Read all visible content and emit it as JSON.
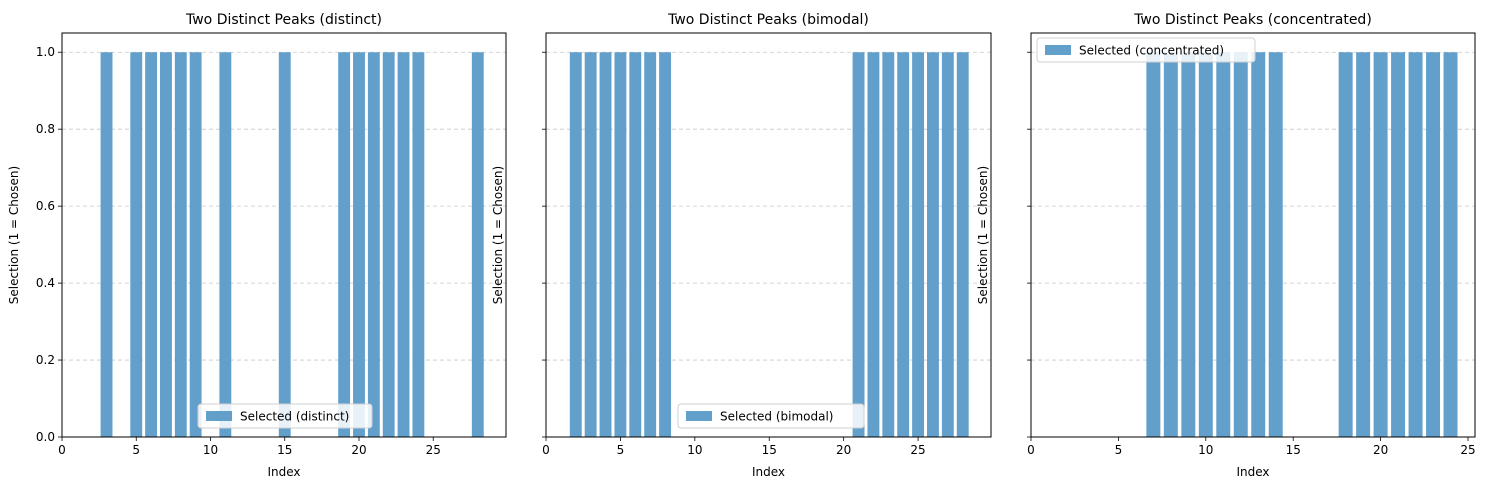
{
  "chart_data": [
    {
      "type": "bar",
      "title": "Two Distinct Peaks (distinct)",
      "xlabel": "Index",
      "ylabel": "Selection (1 = Chosen)",
      "x": [
        3,
        5,
        6,
        7,
        8,
        9,
        11,
        15,
        19,
        20,
        21,
        22,
        23,
        24,
        28
      ],
      "values": [
        1,
        1,
        1,
        1,
        1,
        1,
        1,
        1,
        1,
        1,
        1,
        1,
        1,
        1,
        1
      ],
      "series": [
        {
          "name": "Selected (distinct)"
        }
      ],
      "xlim": [
        0,
        29.9
      ],
      "ylim": [
        0,
        1.05
      ],
      "xticks": [
        0,
        5,
        10,
        15,
        20,
        25
      ],
      "yticks": [
        0.0,
        0.2,
        0.4,
        0.6,
        0.8,
        1.0
      ],
      "grid": "y-dashed",
      "legend": "lower-center",
      "color": "#62a0cb"
    },
    {
      "type": "bar",
      "title": "Two Distinct Peaks (bimodal)",
      "xlabel": "Index",
      "ylabel": "Selection (1 = Chosen)",
      "x": [
        2,
        3,
        4,
        5,
        6,
        7,
        8,
        21,
        22,
        23,
        24,
        25,
        26,
        27,
        28
      ],
      "values": [
        1,
        1,
        1,
        1,
        1,
        1,
        1,
        1,
        1,
        1,
        1,
        1,
        1,
        1,
        1
      ],
      "series": [
        {
          "name": "Selected (bimodal)"
        }
      ],
      "xlim": [
        0,
        29.9
      ],
      "ylim": [
        0,
        1.05
      ],
      "xticks": [
        0,
        5,
        10,
        15,
        20,
        25
      ],
      "yticks": [
        0.0,
        0.2,
        0.4,
        0.6,
        0.8,
        1.0
      ],
      "grid": "y-dashed",
      "legend": "lower-center",
      "color": "#62a0cb"
    },
    {
      "type": "bar",
      "title": "Two Distinct Peaks (concentrated)",
      "xlabel": "Index",
      "ylabel": "Selection (1 = Chosen)",
      "x": [
        7,
        8,
        9,
        10,
        11,
        12,
        13,
        14,
        18,
        19,
        20,
        21,
        22,
        23,
        24
      ],
      "values": [
        1,
        1,
        1,
        1,
        1,
        1,
        1,
        1,
        1,
        1,
        1,
        1,
        1,
        1,
        1
      ],
      "series": [
        {
          "name": "Selected (concentrated)"
        }
      ],
      "xlim": [
        0,
        25.4
      ],
      "ylim": [
        0,
        1.05
      ],
      "xticks": [
        0,
        5,
        10,
        15,
        20,
        25
      ],
      "yticks": [
        0.0,
        0.2,
        0.4,
        0.6,
        0.8,
        1.0
      ],
      "grid": "y-dashed",
      "legend": "upper-left",
      "color": "#62a0cb"
    }
  ]
}
